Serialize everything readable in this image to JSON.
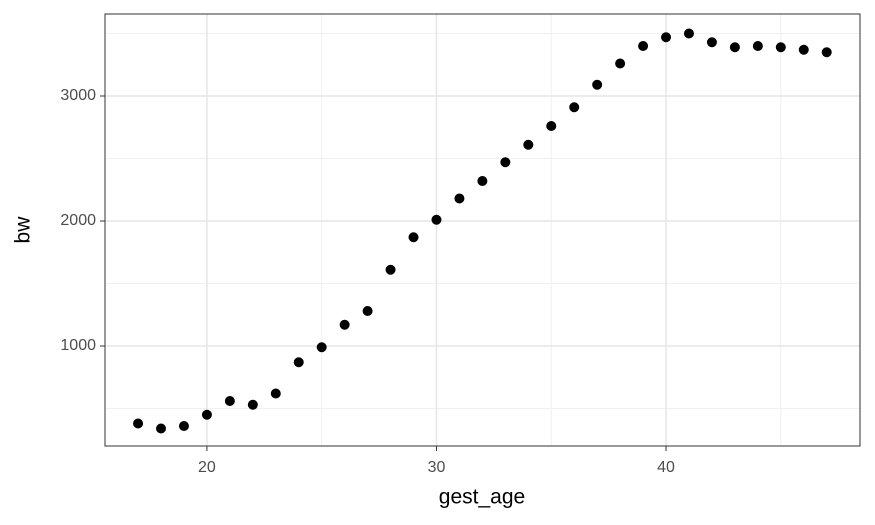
{
  "chart_data": {
    "type": "scatter",
    "x_label": "gest_age",
    "y_label": "bw",
    "x": [
      17,
      18,
      19,
      20,
      21,
      22,
      23,
      24,
      25,
      26,
      27,
      28,
      29,
      30,
      31,
      32,
      33,
      34,
      35,
      36,
      37,
      38,
      39,
      40,
      41,
      42,
      43,
      44,
      45,
      46,
      47
    ],
    "values": [
      380,
      340,
      360,
      450,
      560,
      530,
      620,
      870,
      990,
      1170,
      1280,
      1610,
      1870,
      2010,
      2180,
      2320,
      2470,
      2610,
      2760,
      2910,
      3090,
      3260,
      3400,
      3470,
      3500,
      3430,
      3390,
      3400,
      3390,
      3370,
      3350
    ],
    "color": "#000000",
    "xlim": [
      15.56,
      48.45
    ],
    "ylim": [
      200,
      3656
    ],
    "xticks": [
      20,
      30,
      40
    ],
    "yticks": [
      1000,
      2000,
      3000
    ],
    "x_minor_grid": [
      25,
      35,
      45
    ],
    "y_minor_grid": [
      500,
      1500,
      2500,
      3500
    ],
    "grid": true
  }
}
